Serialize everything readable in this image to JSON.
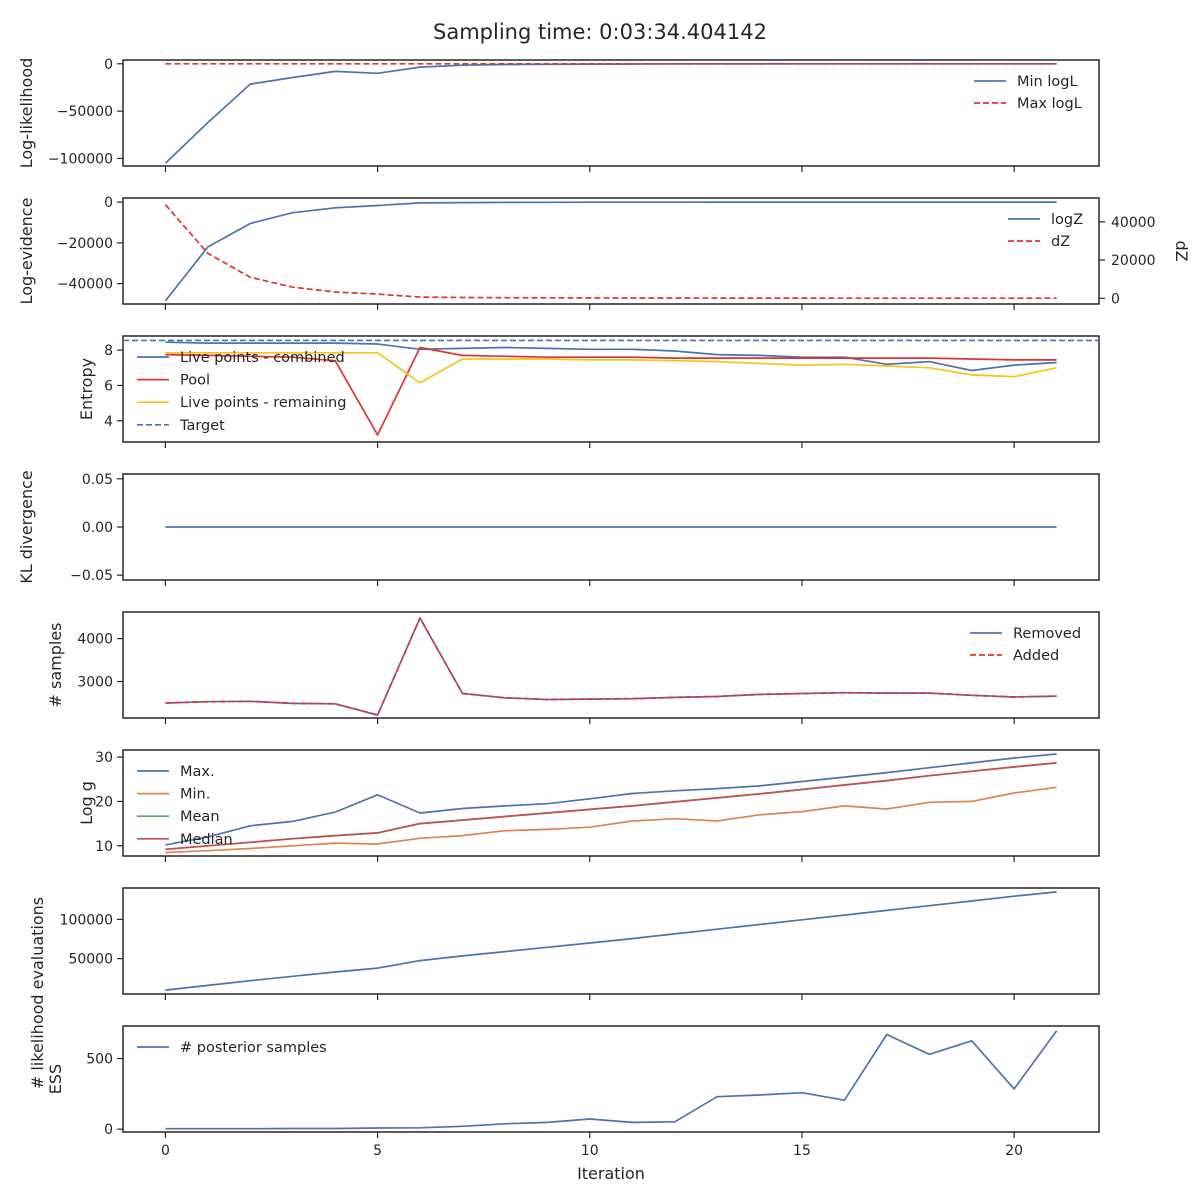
{
  "title": "Sampling time: 0:03:34.404142",
  "colors": {
    "blue": "#4c72b0",
    "red": "#dd3333",
    "orange": "#dd8452",
    "green": "#55a868",
    "median": "#c44e52",
    "yellow": "#f5c518",
    "axis": "#262626"
  },
  "xlabel": "Iteration",
  "chart_data": [
    {
      "type": "line",
      "ylabel": "Log-likelihood",
      "xlim": [
        -1,
        22
      ],
      "ylim": [
        -108000,
        4000
      ],
      "yticks": [
        0,
        -50000,
        -100000
      ],
      "ytick_labels": [
        "0",
        "−50000",
        "−100000"
      ],
      "legend": "upper-right",
      "x": [
        0,
        1,
        2,
        3,
        4,
        5,
        6,
        7,
        8,
        9,
        10,
        11,
        12,
        13,
        14,
        15,
        16,
        17,
        18,
        19,
        20,
        21
      ],
      "series": [
        {
          "name": "Min logL",
          "color": "blue",
          "dash": false,
          "values": [
            -105000,
            -62000,
            -21500,
            -14500,
            -8000,
            -10000,
            -3500,
            -1500,
            -800,
            -500,
            -300,
            -200,
            -150,
            -100,
            -80,
            -60,
            -50,
            -40,
            -30,
            -25,
            -20,
            -15
          ]
        },
        {
          "name": "Max logL",
          "color": "red",
          "dash": true,
          "values": [
            0,
            0,
            0,
            0,
            0,
            0,
            0,
            0,
            0,
            0,
            0,
            0,
            0,
            0,
            0,
            0,
            0,
            0,
            0,
            0,
            0,
            0
          ]
        }
      ]
    },
    {
      "type": "line",
      "ylabel": "Log-evidence",
      "y2label": "dZ",
      "xlim": [
        -1,
        22
      ],
      "ylim": [
        -50000,
        2000
      ],
      "yticks": [
        0,
        -20000,
        -40000
      ],
      "ytick_labels": [
        "0",
        "−20000",
        "−40000"
      ],
      "y2lim": [
        -3000,
        52500
      ],
      "y2ticks": [
        0,
        20000,
        40000
      ],
      "y2tick_labels": [
        "0",
        "20000",
        "40000"
      ],
      "legend": "upper-right",
      "x": [
        0,
        1,
        2,
        3,
        4,
        5,
        6,
        7,
        8,
        9,
        10,
        11,
        12,
        13,
        14,
        15,
        16,
        17,
        18,
        19,
        20,
        21
      ],
      "series": [
        {
          "name": "logZ",
          "color": "blue",
          "dash": false,
          "axis": "left",
          "values": [
            -48500,
            -22000,
            -10500,
            -5200,
            -2800,
            -1700,
            -400,
            -250,
            -150,
            -100,
            -80,
            -60,
            -40,
            -30,
            -20,
            -15,
            -10,
            -8,
            -5,
            -3,
            -2,
            -1
          ]
        },
        {
          "name": "dZ",
          "color": "red",
          "dash": true,
          "axis": "right",
          "values": [
            49000,
            23500,
            11000,
            5800,
            3300,
            2200,
            600,
            400,
            300,
            250,
            200,
            150,
            120,
            100,
            80,
            70,
            60,
            50,
            40,
            30,
            25,
            20
          ]
        }
      ]
    },
    {
      "type": "line",
      "ylabel": "Entropy",
      "xlim": [
        -1,
        22
      ],
      "ylim": [
        2.8,
        8.8
      ],
      "yticks": [
        8,
        6,
        4
      ],
      "ytick_labels": [
        "8",
        "6",
        "4"
      ],
      "legend": "upper-left",
      "x": [
        0,
        1,
        2,
        3,
        4,
        5,
        6,
        7,
        8,
        9,
        10,
        11,
        12,
        13,
        14,
        15,
        16,
        17,
        18,
        19,
        20,
        21
      ],
      "series": [
        {
          "name": "Live points - combined",
          "color": "blue",
          "dash": false,
          "values": [
            8.45,
            8.4,
            8.4,
            8.4,
            8.4,
            8.35,
            8.05,
            8.1,
            8.15,
            8.1,
            8.05,
            8.05,
            7.95,
            7.75,
            7.7,
            7.6,
            7.6,
            7.2,
            7.35,
            6.85,
            7.15,
            7.3
          ]
        },
        {
          "name": "Pool",
          "color": "red",
          "dash": false,
          "values": [
            7.75,
            7.7,
            7.65,
            7.6,
            7.4,
            3.2,
            8.15,
            7.7,
            7.65,
            7.6,
            7.6,
            7.6,
            7.55,
            7.55,
            7.55,
            7.55,
            7.55,
            7.55,
            7.55,
            7.5,
            7.45,
            7.45
          ]
        },
        {
          "name": "Live points - remaining",
          "color": "yellow",
          "dash": false,
          "values": [
            7.85,
            7.85,
            7.85,
            7.85,
            7.85,
            7.85,
            6.15,
            7.5,
            7.5,
            7.5,
            7.45,
            7.45,
            7.4,
            7.35,
            7.25,
            7.15,
            7.2,
            7.1,
            7.0,
            6.6,
            6.5,
            7.0
          ]
        },
        {
          "name": "Target",
          "color": "blue",
          "dash": true,
          "values": [
            8.55,
            8.55,
            8.55,
            8.55,
            8.55,
            8.55,
            8.55,
            8.55,
            8.55,
            8.55,
            8.55,
            8.55,
            8.55,
            8.55,
            8.55,
            8.55,
            8.55,
            8.55,
            8.55,
            8.55,
            8.55,
            8.55
          ],
          "span": "full"
        }
      ]
    },
    {
      "type": "line",
      "ylabel": "KL divergence",
      "xlim": [
        -1,
        22
      ],
      "ylim": [
        -0.055,
        0.055
      ],
      "yticks": [
        0.05,
        0.0,
        -0.05
      ],
      "ytick_labels": [
        "0.05",
        "0.00",
        "−0.05"
      ],
      "legend": "none",
      "x": [
        0,
        1,
        2,
        3,
        4,
        5,
        6,
        7,
        8,
        9,
        10,
        11,
        12,
        13,
        14,
        15,
        16,
        17,
        18,
        19,
        20,
        21
      ],
      "series": [
        {
          "name": "",
          "color": "blue",
          "dash": false,
          "values": [
            0,
            0,
            0,
            0,
            0,
            0,
            0,
            0,
            0,
            0,
            0,
            0,
            0,
            0,
            0,
            0,
            0,
            0,
            0,
            0,
            0,
            0
          ]
        }
      ]
    },
    {
      "type": "line",
      "ylabel": "# samples",
      "xlim": [
        -1,
        22
      ],
      "ylim": [
        2150,
        4620
      ],
      "yticks": [
        4000,
        3000
      ],
      "ytick_labels": [
        "4000",
        "3000"
      ],
      "legend": "upper-right",
      "x": [
        0,
        1,
        2,
        3,
        4,
        5,
        6,
        7,
        8,
        9,
        10,
        11,
        12,
        13,
        14,
        15,
        16,
        17,
        18,
        19,
        20,
        21
      ],
      "series": [
        {
          "name": "Removed",
          "color": "blue",
          "dash": false,
          "values": [
            2500,
            2530,
            2540,
            2490,
            2480,
            2220,
            4480,
            2720,
            2620,
            2580,
            2590,
            2600,
            2630,
            2650,
            2700,
            2720,
            2740,
            2730,
            2730,
            2680,
            2640,
            2660
          ]
        },
        {
          "name": "Added",
          "color": "red",
          "dash": true,
          "values": [
            2500,
            2530,
            2540,
            2490,
            2480,
            2220,
            4480,
            2720,
            2620,
            2580,
            2590,
            2600,
            2630,
            2650,
            2700,
            2720,
            2740,
            2730,
            2730,
            2680,
            2640,
            2660
          ]
        }
      ]
    },
    {
      "type": "line",
      "ylabel": "Log g",
      "xlim": [
        -1,
        22
      ],
      "ylim": [
        7.7,
        31.6
      ],
      "yticks": [
        30,
        20,
        10
      ],
      "ytick_labels": [
        "30",
        "20",
        "10"
      ],
      "legend": "upper-left",
      "x": [
        0,
        1,
        2,
        3,
        4,
        5,
        6,
        7,
        8,
        9,
        10,
        11,
        12,
        13,
        14,
        15,
        16,
        17,
        18,
        19,
        20,
        21
      ],
      "series": [
        {
          "name": "Max.",
          "color": "blue",
          "dash": false,
          "values": [
            10.2,
            12.0,
            14.5,
            15.5,
            17.6,
            21.5,
            17.4,
            18.4,
            19.0,
            19.5,
            20.6,
            21.8,
            22.4,
            22.9,
            23.5,
            24.5,
            25.5,
            26.5,
            27.6,
            28.7,
            29.8,
            30.7
          ]
        },
        {
          "name": "Min.",
          "color": "orange",
          "dash": false,
          "values": [
            8.5,
            8.9,
            9.4,
            10.0,
            10.6,
            10.4,
            11.7,
            12.3,
            13.4,
            13.7,
            14.2,
            15.6,
            16.1,
            15.6,
            17.0,
            17.7,
            19.0,
            18.3,
            19.8,
            20.0,
            21.9,
            23.2
          ]
        },
        {
          "name": "Mean",
          "color": "green",
          "dash": false,
          "values": [
            9.2,
            10.0,
            10.8,
            11.6,
            12.3,
            12.9,
            15.0,
            15.8,
            16.6,
            17.4,
            18.2,
            19.0,
            19.9,
            20.8,
            21.7,
            22.7,
            23.7,
            24.7,
            25.8,
            26.8,
            27.8,
            28.7
          ]
        },
        {
          "name": "Median",
          "color": "median",
          "dash": false,
          "values": [
            9.2,
            10.0,
            10.8,
            11.6,
            12.3,
            12.9,
            15.0,
            15.8,
            16.6,
            17.4,
            18.2,
            19.0,
            19.9,
            20.8,
            21.7,
            22.7,
            23.7,
            24.7,
            25.8,
            26.8,
            27.8,
            28.7
          ]
        }
      ]
    },
    {
      "type": "line",
      "ylabel": "# likelihood evaluations",
      "xlim": [
        -1,
        22
      ],
      "ylim": [
        5000,
        140000
      ],
      "yticks": [
        100000,
        50000
      ],
      "ytick_labels": [
        "100000",
        "50000"
      ],
      "legend": "none",
      "x": [
        0,
        1,
        2,
        3,
        4,
        5,
        6,
        7,
        8,
        9,
        10,
        11,
        12,
        13,
        14,
        15,
        16,
        17,
        18,
        19,
        20,
        21
      ],
      "series": [
        {
          "name": "",
          "color": "blue",
          "dash": false,
          "values": [
            10000,
            16000,
            22000,
            27500,
            33000,
            38000,
            47500,
            53500,
            59000,
            64500,
            70000,
            75500,
            81500,
            87500,
            93500,
            99500,
            105500,
            111500,
            117500,
            123500,
            129500,
            135000
          ]
        }
      ]
    },
    {
      "type": "line",
      "ylabel": "ESS",
      "xlim": [
        -1,
        22
      ],
      "ylim": [
        -20,
        730
      ],
      "yticks": [
        500,
        0
      ],
      "ytick_labels": [
        "500",
        "0"
      ],
      "xticks": [
        0,
        5,
        10,
        15,
        20
      ],
      "xtick_labels": [
        "0",
        "5",
        "10",
        "15",
        "20"
      ],
      "legend": "upper-left",
      "x": [
        0,
        1,
        2,
        3,
        4,
        5,
        6,
        7,
        8,
        9,
        10,
        11,
        12,
        13,
        14,
        15,
        16,
        17,
        18,
        19,
        20,
        21
      ],
      "series": [
        {
          "name": "# posterior samples",
          "color": "blue",
          "dash": false,
          "values": [
            3,
            3,
            3,
            5,
            5,
            8,
            10,
            20,
            38,
            48,
            72,
            48,
            52,
            230,
            242,
            258,
            205,
            670,
            530,
            625,
            285,
            695
          ]
        }
      ]
    }
  ]
}
